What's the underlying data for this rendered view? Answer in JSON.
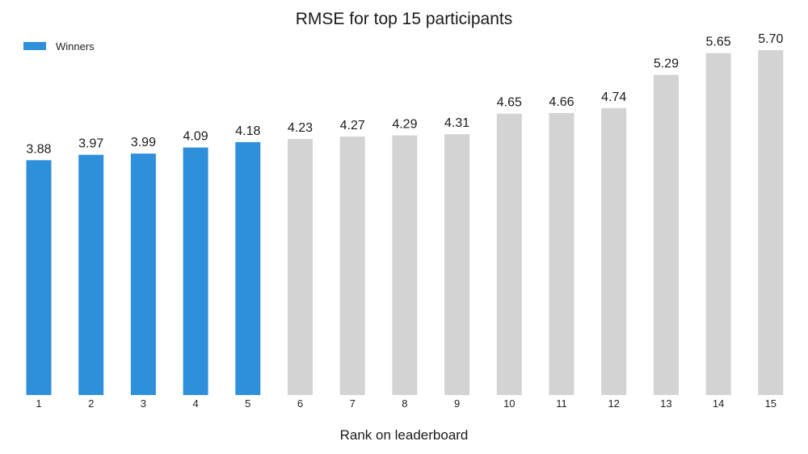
{
  "chart_data": {
    "type": "bar",
    "title": "RMSE for top 15 participants",
    "xlabel": "Rank on leaderboard",
    "ylabel": "",
    "ylim": [
      0,
      5.7
    ],
    "grid": false,
    "legend": {
      "position": "top-left",
      "entries": [
        {
          "label": "Winners",
          "color": "#2e8fdb"
        }
      ]
    },
    "categories": [
      "1",
      "2",
      "3",
      "4",
      "5",
      "6",
      "7",
      "8",
      "9",
      "10",
      "11",
      "12",
      "13",
      "14",
      "15"
    ],
    "values": [
      3.88,
      3.97,
      3.99,
      4.09,
      4.18,
      4.23,
      4.27,
      4.29,
      4.31,
      4.65,
      4.66,
      4.74,
      5.29,
      5.65,
      5.7
    ],
    "value_labels": [
      "3.88",
      "3.97",
      "3.99",
      "4.09",
      "4.18",
      "4.23",
      "4.27",
      "4.29",
      "4.31",
      "4.65",
      "4.66",
      "4.74",
      "5.29",
      "5.65",
      "5.70"
    ],
    "winners_count": 5,
    "colors": {
      "winner": "#2e8fdb",
      "other": "#d3d3d3"
    }
  }
}
